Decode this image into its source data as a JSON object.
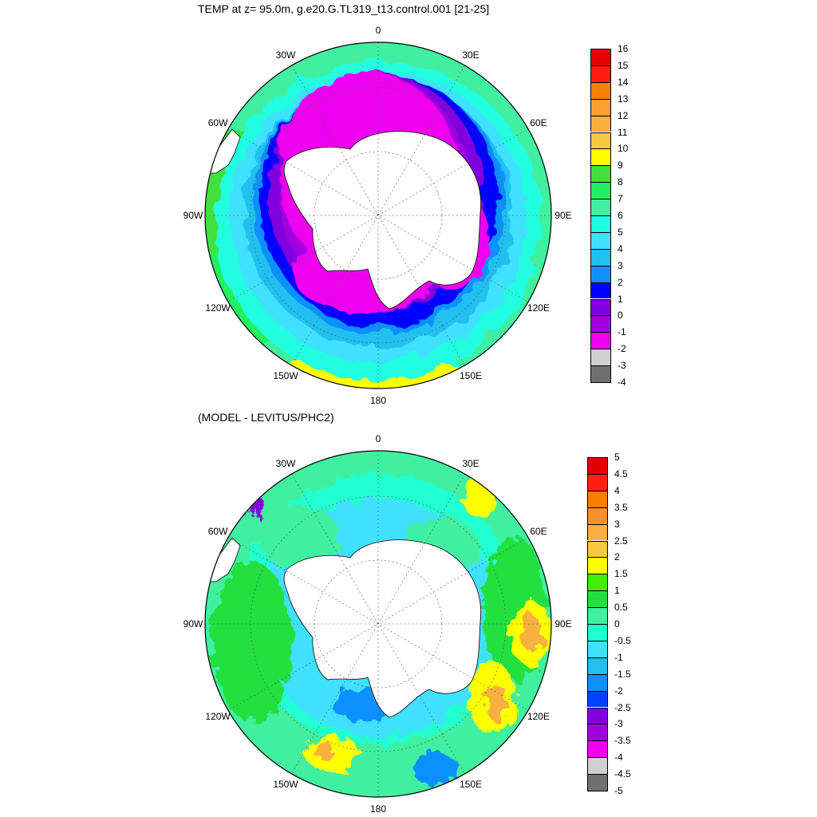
{
  "panels": [
    {
      "title": "TEMP at z=  95.0m, g.e20.G.TL319_t13.control.001 [21-25]",
      "lon_labels": [
        "0",
        "30E",
        "60E",
        "90E",
        "120E",
        "150E",
        "180",
        "150W",
        "120W",
        "90W",
        "60W",
        "30W"
      ],
      "colorbar": {
        "labels": [
          "16",
          "15",
          "14",
          "13",
          "12",
          "11",
          "10",
          "9",
          "8",
          "7",
          "6",
          "5",
          "4",
          "3",
          "2",
          "1",
          "0",
          "-1",
          "-2",
          "-3",
          "-4"
        ],
        "colors": [
          "#c00000",
          "#e50000",
          "#ff2010",
          "#f88000",
          "#f8a030",
          "#f8b040",
          "#f8c840",
          "#ffff00",
          "#40e040",
          "#20f060",
          "#40f0a0",
          "#20ffe0",
          "#40e0ff",
          "#20c0f0",
          "#1090ff",
          "#0000ff",
          "#8000e0",
          "#a000e0",
          "#ee00ee",
          "#d0d0d0",
          "#707070"
        ]
      }
    },
    {
      "title": "(MODEL - LEVITUS/PHC2)",
      "lon_labels": [
        "0",
        "30E",
        "60E",
        "90E",
        "120E",
        "150E",
        "180",
        "150W",
        "120W",
        "90W",
        "60W",
        "30W"
      ],
      "colorbar": {
        "labels": [
          "5",
          "4.5",
          "4",
          "3.5",
          "3",
          "2.5",
          "2",
          "1.5",
          "1",
          "0.5",
          "0",
          "-0.5",
          "-1",
          "-1.5",
          "-2",
          "-2.5",
          "-3",
          "-3.5",
          "-4",
          "-4.5",
          "-5"
        ],
        "colors": [
          "#c00000",
          "#e00000",
          "#ff2010",
          "#f88000",
          "#f89030",
          "#f8b040",
          "#f8c840",
          "#ffff00",
          "#40f000",
          "#20e040",
          "#40f0a0",
          "#20ffd0",
          "#40e0ff",
          "#20c0f0",
          "#1090ff",
          "#0040ff",
          "#8000e0",
          "#a000e0",
          "#ee00ee",
          "#d0d0d0",
          "#707070"
        ]
      }
    }
  ]
}
